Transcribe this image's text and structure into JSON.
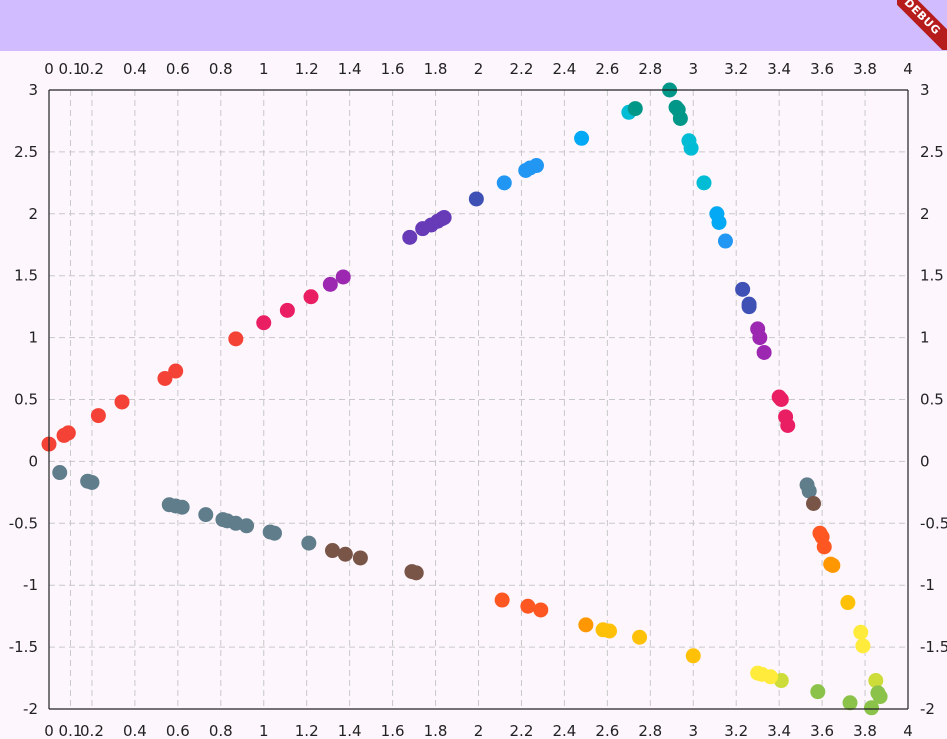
{
  "debug_banner": "DEBUG",
  "colors": {
    "appbar": "#d0bcfe",
    "background": "#fdf7fd",
    "grid": "#c8c8c8",
    "border": "#222222"
  },
  "chart_data": {
    "type": "scatter",
    "xlim": [
      0,
      4
    ],
    "ylim": [
      -2,
      3
    ],
    "x_ticks": [
      0,
      0.1,
      0.2,
      0.4,
      0.6,
      0.8,
      1,
      1.2,
      1.4,
      1.6,
      1.8,
      2,
      2.2,
      2.4,
      2.6,
      2.8,
      3,
      3.2,
      3.4,
      3.6,
      3.8,
      4
    ],
    "x_tick_labels": [
      "0",
      "0.1",
      "0.2",
      "0.4",
      "0.6",
      "0.8",
      "1",
      "1.2",
      "1.4",
      "1.6",
      "1.8",
      "2",
      "2.2",
      "2.4",
      "2.6",
      "2.8",
      "3",
      "3.2",
      "3.4",
      "3.6",
      "3.8",
      "4"
    ],
    "y_ticks": [
      -2,
      -1.5,
      -1,
      -0.5,
      0,
      0.5,
      1,
      1.5,
      2,
      2.5,
      3
    ],
    "y_tick_labels": [
      "-2",
      "-1.5",
      "-1",
      "-0.5",
      "0",
      "0.5",
      "1",
      "1.5",
      "2",
      "2.5",
      "3"
    ],
    "axis_labels_on": [
      "top",
      "bottom",
      "left",
      "right"
    ],
    "grid": true,
    "grid_style": "dashed",
    "points": [
      {
        "x": 0.0,
        "y": 0.14,
        "color": "#f44336"
      },
      {
        "x": 0.07,
        "y": 0.21,
        "color": "#f44336"
      },
      {
        "x": 0.09,
        "y": 0.23,
        "color": "#f44336"
      },
      {
        "x": 0.23,
        "y": 0.37,
        "color": "#f44336"
      },
      {
        "x": 0.34,
        "y": 0.48,
        "color": "#f44336"
      },
      {
        "x": 0.54,
        "y": 0.67,
        "color": "#f44336"
      },
      {
        "x": 0.59,
        "y": 0.73,
        "color": "#f44336"
      },
      {
        "x": 0.87,
        "y": 0.99,
        "color": "#f44336"
      },
      {
        "x": 1.0,
        "y": 1.12,
        "color": "#e91e63"
      },
      {
        "x": 1.11,
        "y": 1.22,
        "color": "#e91e63"
      },
      {
        "x": 1.22,
        "y": 1.33,
        "color": "#e91e63"
      },
      {
        "x": 1.31,
        "y": 1.43,
        "color": "#9c27b0"
      },
      {
        "x": 1.37,
        "y": 1.49,
        "color": "#9c27b0"
      },
      {
        "x": 1.68,
        "y": 1.81,
        "color": "#673ab7"
      },
      {
        "x": 1.74,
        "y": 1.88,
        "color": "#673ab7"
      },
      {
        "x": 1.78,
        "y": 1.91,
        "color": "#673ab7"
      },
      {
        "x": 1.81,
        "y": 1.94,
        "color": "#673ab7"
      },
      {
        "x": 1.83,
        "y": 1.96,
        "color": "#673ab7"
      },
      {
        "x": 1.84,
        "y": 1.97,
        "color": "#673ab7"
      },
      {
        "x": 1.99,
        "y": 2.12,
        "color": "#3f51b5"
      },
      {
        "x": 2.12,
        "y": 2.25,
        "color": "#2196f3"
      },
      {
        "x": 2.22,
        "y": 2.35,
        "color": "#2196f3"
      },
      {
        "x": 2.24,
        "y": 2.37,
        "color": "#2196f3"
      },
      {
        "x": 2.27,
        "y": 2.39,
        "color": "#2196f3"
      },
      {
        "x": 2.48,
        "y": 2.61,
        "color": "#03a9f4"
      },
      {
        "x": 2.7,
        "y": 2.82,
        "color": "#00bcd4"
      },
      {
        "x": 2.73,
        "y": 2.85,
        "color": "#009688"
      },
      {
        "x": 2.89,
        "y": 3.0,
        "color": "#009688"
      },
      {
        "x": 2.92,
        "y": 2.86,
        "color": "#009688"
      },
      {
        "x": 2.93,
        "y": 2.84,
        "color": "#009688"
      },
      {
        "x": 2.94,
        "y": 2.77,
        "color": "#009688"
      },
      {
        "x": 2.98,
        "y": 2.59,
        "color": "#00bcd4"
      },
      {
        "x": 2.99,
        "y": 2.53,
        "color": "#00bcd4"
      },
      {
        "x": 3.05,
        "y": 2.25,
        "color": "#00bcd4"
      },
      {
        "x": 3.11,
        "y": 2.0,
        "color": "#03a9f4"
      },
      {
        "x": 3.12,
        "y": 1.93,
        "color": "#03a9f4"
      },
      {
        "x": 3.15,
        "y": 1.78,
        "color": "#2196f3"
      },
      {
        "x": 3.23,
        "y": 1.39,
        "color": "#3f51b5"
      },
      {
        "x": 3.26,
        "y": 1.25,
        "color": "#3f51b5"
      },
      {
        "x": 3.26,
        "y": 1.27,
        "color": "#3f51b5"
      },
      {
        "x": 3.3,
        "y": 1.07,
        "color": "#9c27b0"
      },
      {
        "x": 3.31,
        "y": 1.0,
        "color": "#9c27b0"
      },
      {
        "x": 3.33,
        "y": 0.88,
        "color": "#9c27b0"
      },
      {
        "x": 3.4,
        "y": 0.52,
        "color": "#e91e63"
      },
      {
        "x": 3.41,
        "y": 0.5,
        "color": "#e91e63"
      },
      {
        "x": 3.43,
        "y": 0.36,
        "color": "#e91e63"
      },
      {
        "x": 3.44,
        "y": 0.29,
        "color": "#e91e63"
      },
      {
        "x": 3.53,
        "y": -0.19,
        "color": "#607d8b"
      },
      {
        "x": 3.54,
        "y": -0.24,
        "color": "#607d8b"
      },
      {
        "x": 3.56,
        "y": -0.34,
        "color": "#795548"
      },
      {
        "x": 3.59,
        "y": -0.58,
        "color": "#ff5722"
      },
      {
        "x": 3.6,
        "y": -0.61,
        "color": "#ff5722"
      },
      {
        "x": 3.61,
        "y": -0.69,
        "color": "#ff5722"
      },
      {
        "x": 3.64,
        "y": -0.83,
        "color": "#ff9800"
      },
      {
        "x": 3.65,
        "y": -0.84,
        "color": "#ff9800"
      },
      {
        "x": 3.72,
        "y": -1.14,
        "color": "#ffc107"
      },
      {
        "x": 3.78,
        "y": -1.38,
        "color": "#ffeb3b"
      },
      {
        "x": 3.79,
        "y": -1.49,
        "color": "#ffeb3b"
      },
      {
        "x": 3.85,
        "y": -1.77,
        "color": "#cddc39"
      },
      {
        "x": 3.86,
        "y": -1.87,
        "color": "#8bc34a"
      },
      {
        "x": 3.87,
        "y": -1.9,
        "color": "#8bc34a"
      },
      {
        "x": 3.83,
        "y": -1.99,
        "color": "#8bc34a"
      },
      {
        "x": 3.73,
        "y": -1.95,
        "color": "#8bc34a"
      },
      {
        "x": 3.58,
        "y": -1.86,
        "color": "#8bc34a"
      },
      {
        "x": 3.41,
        "y": -1.77,
        "color": "#cddc39"
      },
      {
        "x": 3.36,
        "y": -1.74,
        "color": "#ffeb3b"
      },
      {
        "x": 3.32,
        "y": -1.72,
        "color": "#ffeb3b"
      },
      {
        "x": 3.3,
        "y": -1.71,
        "color": "#ffeb3b"
      },
      {
        "x": 3.0,
        "y": -1.57,
        "color": "#ffc107"
      },
      {
        "x": 2.75,
        "y": -1.42,
        "color": "#ffc107"
      },
      {
        "x": 2.58,
        "y": -1.36,
        "color": "#ffc107"
      },
      {
        "x": 2.61,
        "y": -1.37,
        "color": "#ffc107"
      },
      {
        "x": 2.5,
        "y": -1.32,
        "color": "#ff9800"
      },
      {
        "x": 2.29,
        "y": -1.2,
        "color": "#ff5722"
      },
      {
        "x": 2.23,
        "y": -1.17,
        "color": "#ff5722"
      },
      {
        "x": 2.11,
        "y": -1.12,
        "color": "#ff5722"
      },
      {
        "x": 1.71,
        "y": -0.9,
        "color": "#795548"
      },
      {
        "x": 1.69,
        "y": -0.89,
        "color": "#795548"
      },
      {
        "x": 1.45,
        "y": -0.78,
        "color": "#795548"
      },
      {
        "x": 1.38,
        "y": -0.75,
        "color": "#795548"
      },
      {
        "x": 1.32,
        "y": -0.72,
        "color": "#795548"
      },
      {
        "x": 1.21,
        "y": -0.66,
        "color": "#607d8b"
      },
      {
        "x": 1.05,
        "y": -0.58,
        "color": "#607d8b"
      },
      {
        "x": 1.03,
        "y": -0.57,
        "color": "#607d8b"
      },
      {
        "x": 0.92,
        "y": -0.52,
        "color": "#607d8b"
      },
      {
        "x": 0.87,
        "y": -0.5,
        "color": "#607d8b"
      },
      {
        "x": 0.83,
        "y": -0.48,
        "color": "#607d8b"
      },
      {
        "x": 0.81,
        "y": -0.47,
        "color": "#607d8b"
      },
      {
        "x": 0.73,
        "y": -0.43,
        "color": "#607d8b"
      },
      {
        "x": 0.62,
        "y": -0.37,
        "color": "#607d8b"
      },
      {
        "x": 0.59,
        "y": -0.36,
        "color": "#607d8b"
      },
      {
        "x": 0.56,
        "y": -0.35,
        "color": "#607d8b"
      },
      {
        "x": 0.2,
        "y": -0.17,
        "color": "#607d8b"
      },
      {
        "x": 0.18,
        "y": -0.16,
        "color": "#607d8b"
      },
      {
        "x": 0.05,
        "y": -0.09,
        "color": "#607d8b"
      }
    ]
  }
}
